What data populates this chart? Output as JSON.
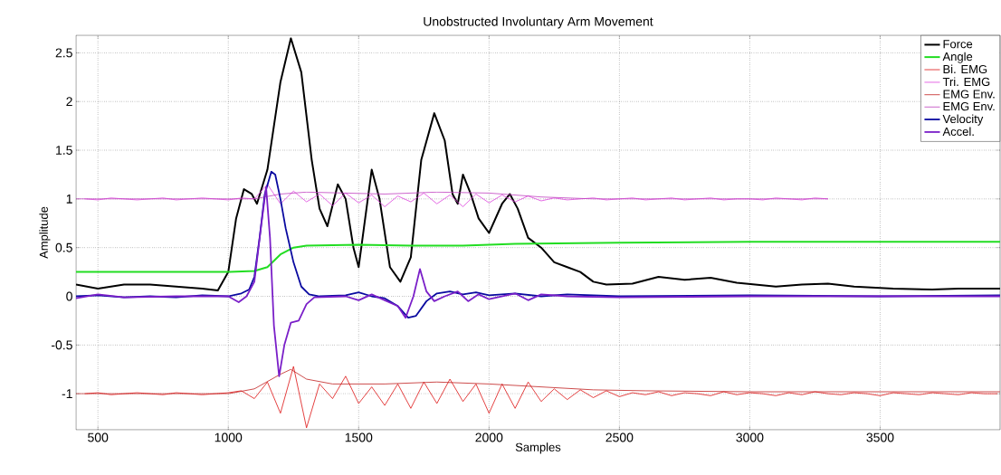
{
  "chart_data": {
    "type": "line",
    "title": "Unobstructed Involuntary Arm Movement",
    "xlabel": "Samples",
    "ylabel": "Amplitude",
    "xlim": [
      416,
      3960
    ],
    "ylim": [
      -1.37,
      2.68
    ],
    "xticks": [
      500,
      1000,
      1500,
      2000,
      2500,
      3000,
      3500
    ],
    "yticks": [
      -1,
      -0.5,
      0,
      0.5,
      1,
      1.5,
      2,
      2.5
    ],
    "grid": true,
    "legend": "top right",
    "marker": "none",
    "line_style": "solid",
    "series": [
      {
        "name": "Force",
        "color": "#000000",
        "x": [
          416,
          500,
          600,
          700,
          800,
          900,
          960,
          1000,
          1030,
          1060,
          1090,
          1110,
          1150,
          1200,
          1240,
          1280,
          1320,
          1350,
          1380,
          1420,
          1450,
          1480,
          1500,
          1520,
          1550,
          1580,
          1620,
          1660,
          1700,
          1740,
          1790,
          1830,
          1860,
          1880,
          1900,
          1930,
          1960,
          2000,
          2050,
          2080,
          2110,
          2150,
          2200,
          2250,
          2300,
          2350,
          2400,
          2450,
          2550,
          2650,
          2750,
          2850,
          2950,
          3100,
          3200,
          3300,
          3400,
          3550,
          3700,
          3800,
          3960
        ],
        "values": [
          0.12,
          0.08,
          0.12,
          0.12,
          0.1,
          0.08,
          0.06,
          0.25,
          0.8,
          1.1,
          1.05,
          0.95,
          1.3,
          2.2,
          2.65,
          2.3,
          1.4,
          0.9,
          0.72,
          1.15,
          1.0,
          0.5,
          0.3,
          0.7,
          1.3,
          1.0,
          0.3,
          0.15,
          0.4,
          1.4,
          1.88,
          1.6,
          1.05,
          0.95,
          1.25,
          1.05,
          0.8,
          0.65,
          0.95,
          1.05,
          0.9,
          0.6,
          0.5,
          0.35,
          0.3,
          0.25,
          0.15,
          0.12,
          0.13,
          0.2,
          0.17,
          0.19,
          0.14,
          0.1,
          0.12,
          0.13,
          0.1,
          0.08,
          0.07,
          0.08,
          0.08
        ]
      },
      {
        "name": "Angle",
        "color": "#22dd22",
        "x": [
          416,
          1000,
          1100,
          1150,
          1200,
          1250,
          1300,
          1500,
          1700,
          1900,
          2100,
          2500,
          3000,
          3960
        ],
        "values": [
          0.25,
          0.25,
          0.26,
          0.3,
          0.43,
          0.5,
          0.52,
          0.53,
          0.52,
          0.52,
          0.54,
          0.55,
          0.56,
          0.56
        ]
      },
      {
        "name": "Bi. EMG",
        "color": "#dd1111",
        "x": [
          450,
          500,
          550,
          600,
          650,
          700,
          750,
          800,
          850,
          900,
          950,
          1000,
          1050,
          1100,
          1150,
          1200,
          1250,
          1300,
          1350,
          1400,
          1450,
          1500,
          1550,
          1600,
          1650,
          1700,
          1750,
          1800,
          1850,
          1900,
          1950,
          2000,
          2050,
          2100,
          2150,
          2200,
          2250,
          2300,
          2350,
          2400,
          2450,
          2500,
          2550,
          2600,
          2650,
          2700,
          2750,
          2800,
          2850,
          2900,
          2950,
          3000,
          3050,
          3100,
          3150,
          3200,
          3250,
          3300,
          3350,
          3400,
          3450,
          3500,
          3550,
          3600,
          3650,
          3700,
          3750,
          3800,
          3850,
          3900,
          3950
        ],
        "values": [
          -1.0,
          -0.99,
          -1.01,
          -1.0,
          -0.99,
          -1.0,
          -1.01,
          -0.99,
          -1.0,
          -1.01,
          -1.0,
          -0.99,
          -0.97,
          -1.05,
          -0.88,
          -1.2,
          -0.72,
          -1.35,
          -0.9,
          -1.05,
          -0.82,
          -1.1,
          -0.93,
          -1.12,
          -0.9,
          -1.15,
          -0.88,
          -1.1,
          -0.85,
          -1.08,
          -0.9,
          -1.2,
          -0.9,
          -1.15,
          -0.88,
          -1.08,
          -0.95,
          -1.06,
          -0.96,
          -1.04,
          -0.97,
          -1.03,
          -0.99,
          -1.01,
          -0.98,
          -1.02,
          -0.99,
          -1.0,
          -1.02,
          -0.98,
          -1.01,
          -0.99,
          -1.0,
          -1.02,
          -0.99,
          -1.01,
          -0.98,
          -1.0,
          -1.01,
          -0.99,
          -1.0,
          -1.02,
          -0.99,
          -1.0,
          -1.01,
          -0.99,
          -1.0,
          -1.01,
          -0.99,
          -1.0,
          -1.0
        ]
      },
      {
        "name": "Tri. EMG",
        "color": "#dd44dd",
        "x": [
          450,
          500,
          550,
          600,
          650,
          700,
          750,
          800,
          850,
          900,
          950,
          1000,
          1050,
          1100,
          1150,
          1200,
          1250,
          1300,
          1350,
          1400,
          1450,
          1500,
          1550,
          1600,
          1650,
          1700,
          1750,
          1800,
          1850,
          1900,
          1950,
          2000,
          2050,
          2100,
          2150,
          2200,
          2250,
          2300,
          2350,
          2400,
          2450,
          2500,
          2550,
          2600,
          2650,
          2700,
          2750,
          2800,
          2850,
          2900,
          2950,
          3000,
          3050,
          3100,
          3150,
          3200,
          3250,
          3300
        ],
        "values": [
          1.0,
          0.99,
          1.01,
          1.0,
          0.99,
          1.0,
          1.01,
          0.99,
          1.0,
          1.01,
          1.0,
          0.99,
          1.01,
          1.0,
          1.15,
          0.95,
          1.08,
          0.97,
          1.05,
          0.93,
          1.06,
          0.96,
          1.04,
          0.92,
          1.03,
          0.97,
          1.06,
          0.95,
          1.04,
          0.92,
          1.05,
          0.96,
          1.04,
          0.97,
          1.03,
          0.98,
          1.01,
          0.99,
          1.0,
          1.01,
          0.99,
          1.0,
          1.01,
          0.99,
          1.0,
          1.01,
          0.99,
          1.0,
          1.01,
          0.99,
          1.0,
          1.0,
          0.99,
          1.01,
          1.0,
          0.99,
          1.01,
          1.0
        ]
      },
      {
        "name": "EMG Env.",
        "color": "#c02020",
        "x": [
          416,
          1000,
          1100,
          1200,
          1240,
          1300,
          1400,
          1600,
          1800,
          2000,
          2200,
          2400,
          2600,
          3000,
          3960
        ],
        "values": [
          -1.0,
          -1.0,
          -0.95,
          -0.8,
          -0.75,
          -0.85,
          -0.9,
          -0.9,
          -0.88,
          -0.9,
          -0.93,
          -0.96,
          -0.97,
          -0.98,
          -0.98
        ]
      },
      {
        "name": "EMG Env.",
        "color": "#c040c0",
        "x": [
          416,
          1100,
          1200,
          1300,
          1600,
          1800,
          2000,
          2200,
          2400,
          3300
        ],
        "values": [
          1.0,
          1.0,
          1.05,
          1.07,
          1.05,
          1.07,
          1.06,
          1.02,
          1.0,
          1.0
        ]
      },
      {
        "name": "Velocity",
        "color": "#0a0aa0",
        "x": [
          416,
          500,
          600,
          700,
          800,
          900,
          1000,
          1050,
          1080,
          1100,
          1120,
          1140,
          1165,
          1180,
          1200,
          1220,
          1250,
          1280,
          1310,
          1350,
          1450,
          1500,
          1550,
          1600,
          1650,
          1690,
          1720,
          1760,
          1800,
          1850,
          1900,
          1950,
          2000,
          2100,
          2200,
          2300,
          2500,
          3000,
          3500,
          3960
        ],
        "values": [
          0.0,
          0.01,
          -0.01,
          0.0,
          -0.01,
          0.01,
          0.0,
          0.03,
          0.07,
          0.2,
          0.6,
          1.05,
          1.28,
          1.25,
          1.0,
          0.7,
          0.35,
          0.1,
          0.02,
          0.0,
          0.01,
          0.04,
          0.0,
          -0.02,
          -0.1,
          -0.22,
          -0.2,
          -0.05,
          0.03,
          0.05,
          0.02,
          0.04,
          0.01,
          0.03,
          0.0,
          0.02,
          0.0,
          0.01,
          0.0,
          0.01
        ]
      },
      {
        "name": "Accel.",
        "color": "#7a1fc8",
        "x": [
          416,
          500,
          600,
          800,
          1000,
          1040,
          1070,
          1100,
          1125,
          1145,
          1160,
          1175,
          1195,
          1215,
          1240,
          1270,
          1300,
          1330,
          1450,
          1500,
          1550,
          1600,
          1650,
          1680,
          1710,
          1735,
          1760,
          1790,
          1830,
          1880,
          1920,
          1960,
          2000,
          2100,
          2150,
          2200,
          2300,
          2500,
          3000,
          3960
        ],
        "values": [
          -0.02,
          0.02,
          -0.01,
          0.0,
          0.0,
          -0.06,
          0.0,
          0.15,
          0.7,
          1.12,
          0.6,
          -0.3,
          -0.82,
          -0.5,
          -0.27,
          -0.25,
          -0.08,
          -0.01,
          0.0,
          -0.04,
          0.02,
          -0.04,
          -0.1,
          -0.22,
          0.0,
          0.28,
          0.05,
          -0.05,
          0.0,
          0.05,
          -0.05,
          0.02,
          -0.03,
          0.03,
          -0.04,
          0.02,
          0.0,
          -0.01,
          0.0,
          0.0
        ]
      }
    ]
  }
}
